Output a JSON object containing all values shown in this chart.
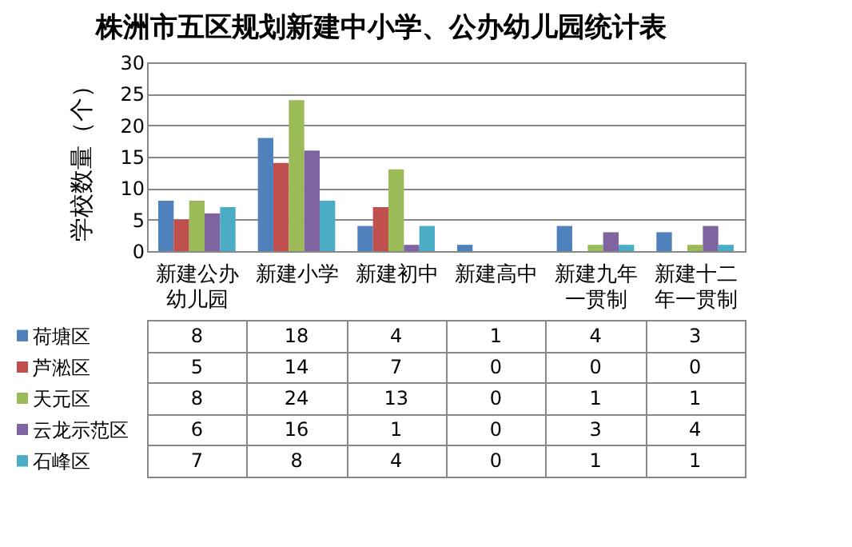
{
  "chart_data": {
    "type": "bar",
    "title": "株洲市五区规划新建中小学、公办幼儿园统计表",
    "ylabel": "学校数量（个）",
    "categories": [
      "新建公办幼儿园",
      "新建小学",
      "新建初中",
      "新建高中",
      "新建九年一贯制",
      "新建十二年一贯制"
    ],
    "series": [
      {
        "name": "荷塘区",
        "color": "#4f81bd",
        "values": [
          8,
          18,
          4,
          1,
          4,
          3
        ]
      },
      {
        "name": "芦淞区",
        "color": "#c0504d",
        "values": [
          5,
          14,
          7,
          0,
          0,
          0
        ]
      },
      {
        "name": "天元区",
        "color": "#9bbb59",
        "values": [
          8,
          24,
          13,
          0,
          1,
          1
        ]
      },
      {
        "name": "云龙示范区",
        "color": "#8064a2",
        "values": [
          6,
          16,
          1,
          0,
          3,
          4
        ]
      },
      {
        "name": "石峰区",
        "color": "#4bacc6",
        "values": [
          7,
          8,
          4,
          0,
          1,
          1
        ]
      }
    ],
    "ylim": [
      0,
      30
    ],
    "yticks": [
      0,
      5,
      10,
      15,
      20,
      25,
      30
    ],
    "grid": "y",
    "data_labels": true,
    "legend": "left"
  }
}
